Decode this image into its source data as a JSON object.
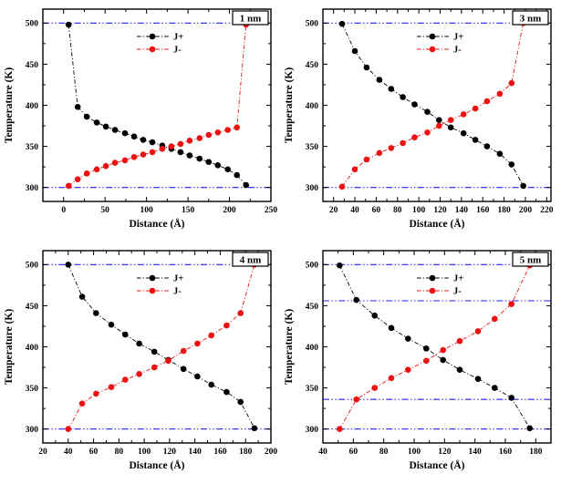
{
  "page": {
    "background": "#ffffff"
  },
  "colors": {
    "axis": "#000000",
    "ref_line": "#2222ee",
    "jplus": "#000000",
    "jminus": "#ee1111"
  },
  "chart_data": [
    {
      "type": "line",
      "panel_label": "1 nm",
      "xlabel": "Distance (Å)",
      "ylabel": "Temperature (K)",
      "xlim": [
        -25,
        250
      ],
      "ylim": [
        283,
        517
      ],
      "x_ticks": [
        0,
        50,
        100,
        150,
        200,
        250
      ],
      "x_minor_step": 25,
      "y_ticks": [
        300,
        350,
        400,
        450,
        500
      ],
      "y_minor_step": 25,
      "grid": false,
      "legend_position": "top-center",
      "ref_lines": [
        300,
        500
      ],
      "series": [
        {
          "name": "J+",
          "color": "#000000",
          "x": [
            6,
            17,
            28,
            40,
            51,
            62,
            74,
            85,
            96,
            107,
            119,
            130,
            141,
            152,
            164,
            175,
            186,
            198,
            209,
            220
          ],
          "y": [
            498,
            398,
            386,
            379,
            374,
            370,
            366,
            362,
            358,
            355,
            351,
            347,
            343,
            339,
            335,
            331,
            327,
            322,
            315,
            303
          ]
        },
        {
          "name": "J-",
          "color": "#ee1111",
          "x": [
            6,
            17,
            28,
            40,
            51,
            62,
            74,
            85,
            96,
            107,
            119,
            130,
            141,
            152,
            164,
            175,
            186,
            198,
            209,
            220
          ],
          "y": [
            302,
            310,
            317,
            322,
            326,
            330,
            333,
            337,
            340,
            343,
            347,
            350,
            353,
            357,
            360,
            364,
            367,
            370,
            373,
            498
          ]
        }
      ]
    },
    {
      "type": "line",
      "panel_label": "3 nm",
      "xlabel": "Distance (Å)",
      "ylabel": "Temperature (K)",
      "xlim": [
        10,
        224
      ],
      "ylim": [
        283,
        517
      ],
      "x_ticks": [
        20,
        40,
        60,
        80,
        100,
        120,
        140,
        160,
        180,
        200,
        220
      ],
      "x_minor_step": 10,
      "y_ticks": [
        300,
        350,
        400,
        450,
        500
      ],
      "y_minor_step": 25,
      "grid": false,
      "legend_position": "top-center",
      "ref_lines": [
        300,
        500
      ],
      "series": [
        {
          "name": "J+",
          "color": "#000000",
          "x": [
            28,
            40,
            51,
            63,
            74,
            85,
            96,
            108,
            119,
            130,
            142,
            153,
            164,
            176,
            187,
            198
          ],
          "y": [
            499,
            466,
            446,
            431,
            420,
            410,
            401,
            392,
            382,
            373,
            366,
            358,
            350,
            341,
            328,
            302
          ]
        },
        {
          "name": "J-",
          "color": "#ee1111",
          "x": [
            28,
            40,
            51,
            63,
            74,
            85,
            96,
            108,
            119,
            130,
            142,
            153,
            164,
            176,
            187,
            198
          ],
          "y": [
            301,
            322,
            334,
            342,
            348,
            354,
            361,
            367,
            375,
            382,
            389,
            396,
            405,
            414,
            427,
            500
          ]
        }
      ]
    },
    {
      "type": "line",
      "panel_label": "4 nm",
      "xlabel": "Distance (Å)",
      "ylabel": "Temperature (K)",
      "xlim": [
        20,
        200
      ],
      "ylim": [
        283,
        517
      ],
      "x_ticks": [
        20,
        40,
        60,
        80,
        100,
        120,
        140,
        160,
        180,
        200
      ],
      "x_minor_step": 10,
      "y_ticks": [
        300,
        350,
        400,
        450,
        500
      ],
      "y_minor_step": 25,
      "grid": false,
      "legend_position": "top-center",
      "ref_lines": [
        300,
        500
      ],
      "series": [
        {
          "name": "J+",
          "color": "#000000",
          "x": [
            40,
            51,
            62,
            74,
            85,
            96,
            108,
            119,
            131,
            142,
            153,
            165,
            176,
            187
          ],
          "y": [
            500,
            461,
            441,
            427,
            415,
            404,
            394,
            384,
            373,
            364,
            354,
            345,
            333,
            301
          ]
        },
        {
          "name": "J-",
          "color": "#ee1111",
          "x": [
            40,
            51,
            62,
            74,
            85,
            96,
            108,
            119,
            131,
            142,
            153,
            165,
            176,
            187
          ],
          "y": [
            300,
            331,
            343,
            351,
            360,
            367,
            375,
            383,
            395,
            404,
            414,
            426,
            441,
            500
          ]
        }
      ]
    },
    {
      "type": "line",
      "panel_label": "5 nm",
      "xlabel": "Distance (Å)",
      "ylabel": "Temperature (K)",
      "xlim": [
        40,
        190
      ],
      "ylim": [
        283,
        517
      ],
      "x_ticks": [
        40,
        60,
        80,
        100,
        120,
        140,
        160,
        180
      ],
      "x_minor_step": 10,
      "y_ticks": [
        300,
        350,
        400,
        450,
        500
      ],
      "y_minor_step": 25,
      "grid": false,
      "legend_position": "top-center",
      "ref_lines": [
        300,
        336,
        456,
        500
      ],
      "series": [
        {
          "name": "J+",
          "color": "#000000",
          "x": [
            51,
            62,
            74,
            85,
            96,
            108,
            119,
            130,
            142,
            153,
            164,
            176
          ],
          "y": [
            499,
            457,
            438,
            423,
            410,
            398,
            384,
            372,
            361,
            350,
            338,
            301
          ]
        },
        {
          "name": "J-",
          "color": "#ee1111",
          "x": [
            51,
            62,
            74,
            85,
            96,
            108,
            119,
            130,
            142,
            153,
            164,
            176
          ],
          "y": [
            300,
            336,
            350,
            362,
            372,
            383,
            396,
            407,
            419,
            434,
            452,
            499
          ]
        }
      ]
    }
  ]
}
